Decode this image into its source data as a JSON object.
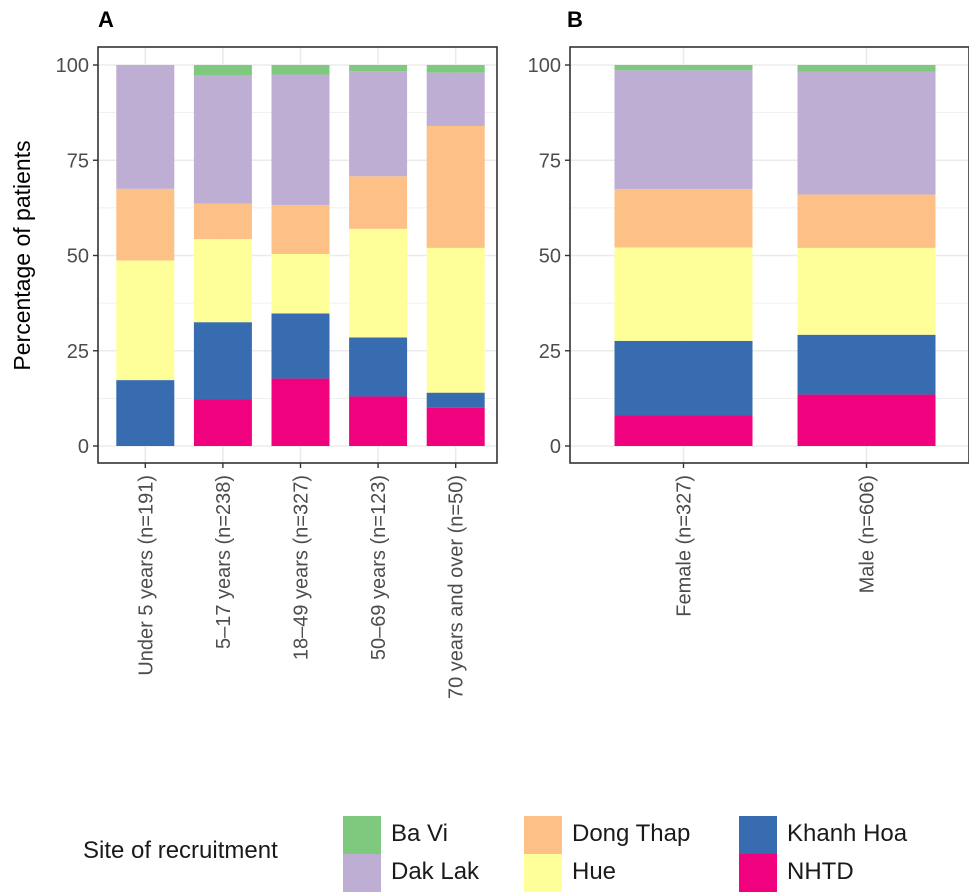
{
  "colors": {
    "Ba Vi": "#7fc97f",
    "Dak Lak": "#beaed4",
    "Dong Thap": "#fdc086",
    "Hue": "#ffff99",
    "Khanh Hoa": "#386cb0",
    "NHTD": "#f0027f"
  },
  "legend": {
    "title": "Site of recruitment",
    "items": [
      "Ba Vi",
      "Dak Lak",
      "Dong Thap",
      "Hue",
      "Khanh Hoa",
      "NHTD"
    ]
  },
  "chart_data": [
    {
      "type": "bar",
      "stacked": true,
      "panel_label": "A",
      "ylabel": "Percentage of patients",
      "ylim": [
        0,
        100
      ],
      "yticks": [
        0,
        25,
        50,
        75,
        100
      ],
      "grid": true,
      "categories": [
        "Under 5 years (n=191)",
        "5–17 years (n=238)",
        "18–49 years (n=327)",
        "50–69 years (n=123)",
        "70 years and over (n=50)"
      ],
      "series": [
        {
          "name": "NHTD",
          "values": [
            0,
            12.2,
            17.7,
            13.0,
            10.0
          ]
        },
        {
          "name": "Khanh Hoa",
          "values": [
            17.3,
            20.3,
            17.1,
            15.5,
            4.0
          ]
        },
        {
          "name": "Hue",
          "values": [
            31.4,
            21.8,
            15.6,
            28.5,
            38.0
          ]
        },
        {
          "name": "Dong Thap",
          "values": [
            18.8,
            9.3,
            12.8,
            13.8,
            32.0
          ]
        },
        {
          "name": "Dak Lak",
          "values": [
            32.5,
            33.6,
            34.3,
            27.6,
            14.0
          ]
        },
        {
          "name": "Ba Vi",
          "values": [
            0,
            2.8,
            2.5,
            1.6,
            2.0
          ]
        }
      ]
    },
    {
      "type": "bar",
      "stacked": true,
      "panel_label": "B",
      "ylabel": "",
      "ylim": [
        0,
        100
      ],
      "yticks": [
        0,
        25,
        50,
        75,
        100
      ],
      "grid": true,
      "categories": [
        "Female (n=327)",
        "Male (n=606)"
      ],
      "series": [
        {
          "name": "NHTD",
          "values": [
            8.0,
            13.5
          ]
        },
        {
          "name": "Khanh Hoa",
          "values": [
            19.6,
            15.7
          ]
        },
        {
          "name": "Hue",
          "values": [
            24.5,
            22.8
          ]
        },
        {
          "name": "Dong Thap",
          "values": [
            15.3,
            14.0
          ]
        },
        {
          "name": "Dak Lak",
          "values": [
            31.2,
            32.3
          ]
        },
        {
          "name": "Ba Vi",
          "values": [
            1.4,
            1.7
          ]
        }
      ]
    }
  ]
}
